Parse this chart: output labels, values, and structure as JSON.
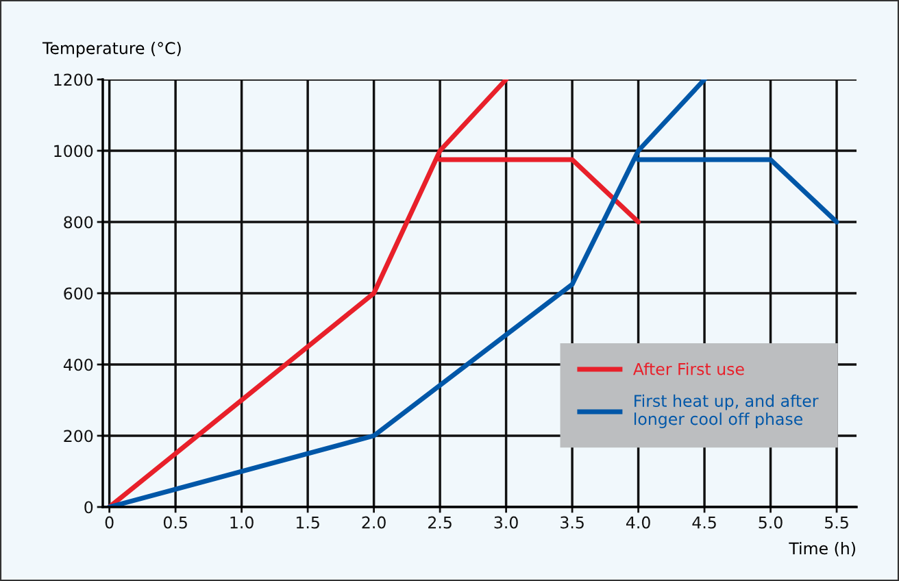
{
  "chart_data": {
    "type": "line",
    "xlabel": "Time (h)",
    "ylabel": "Temperature (°C)",
    "series": [
      {
        "name": "After First use",
        "color": "#e8202a",
        "x": [
          0,
          2.0,
          2.5,
          3.0
        ],
        "values": [
          0,
          600,
          1000,
          1200
        ]
      },
      {
        "color": "#e8202a",
        "x": [
          2.5,
          3.5,
          4.0
        ],
        "values": [
          975,
          975,
          800
        ]
      },
      {
        "name": "First heat up, and after\nlonger cool off phase",
        "color": "#0057a8",
        "x": [
          0,
          2.0,
          3.5,
          4.0,
          4.5
        ],
        "values": [
          0,
          200,
          625,
          1000,
          1200
        ]
      },
      {
        "color": "#0057a8",
        "x": [
          4.0,
          5.0,
          5.5
        ],
        "values": [
          975,
          975,
          800
        ]
      }
    ],
    "xlim": [
      -0.05,
      5.65
    ],
    "ylim": [
      0,
      1200
    ],
    "xticks": [
      0,
      0.5,
      {
        "value": 1,
        "label": "1.0"
      },
      1.5,
      {
        "value": 2,
        "label": "2.0"
      },
      2.5,
      {
        "value": 3,
        "label": "3.0"
      },
      3.5,
      {
        "value": 4,
        "label": "4.0"
      },
      4.5,
      {
        "value": 5,
        "label": "5.0"
      },
      5.5
    ],
    "yticks": [
      0,
      200,
      400,
      600,
      800,
      1000,
      1200
    ],
    "grid": true,
    "legend": "lower right",
    "marker": "none",
    "line_style": "solid"
  }
}
